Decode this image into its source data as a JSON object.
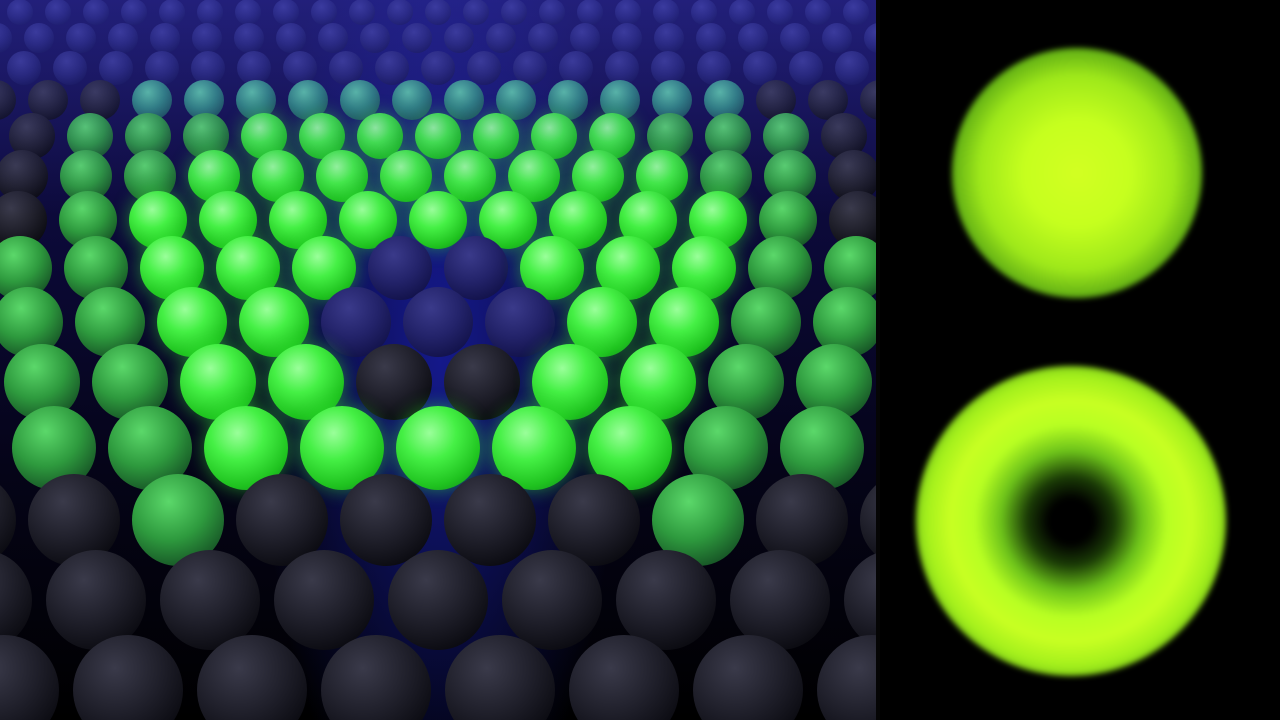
{
  "image": {
    "left_panel": "sphere-lattice-render",
    "right_panel": "beam-intensity-profiles"
  },
  "colors": {
    "glow_green": "#45f045",
    "dark_sphere": "#1f1f2a",
    "navy_sphere": "#23236a",
    "lattice_blue": "#1a1ad0",
    "beam_yellow_green": "#c6ff1e",
    "background": "#000000"
  },
  "profiles": [
    {
      "shape": "gaussian-spot"
    },
    {
      "shape": "donut-ring"
    }
  ]
}
